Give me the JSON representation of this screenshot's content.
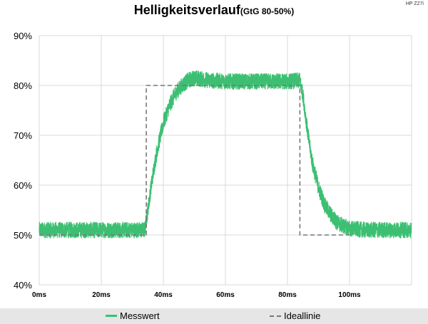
{
  "title": "Helligkeitsverlauf",
  "subtitle": "(GtG 80-50%)",
  "corner_label": "HP Z27i",
  "legend": {
    "series1": "Messwert",
    "series2": "Ideallinie"
  },
  "colors": {
    "measured": "#3cbf72",
    "ideal": "#777777",
    "grid": "#d9d9d9"
  },
  "chart_data": {
    "type": "line",
    "title": "Helligkeitsverlauf",
    "subtitle": "(GtG 80-50%)",
    "xlabel": "",
    "ylabel": "",
    "xlim": [
      0,
      120
    ],
    "ylim": [
      40,
      90
    ],
    "x_ticks": [
      0,
      20,
      40,
      60,
      80,
      100
    ],
    "x_tick_labels": [
      "0ms",
      "20ms",
      "40ms",
      "60ms",
      "80ms",
      "100ms"
    ],
    "y_ticks": [
      40,
      50,
      60,
      70,
      80,
      90
    ],
    "y_tick_labels": [
      "40%",
      "50%",
      "60%",
      "70%",
      "80%",
      "90%"
    ],
    "grid": true,
    "legend_position": "bottom",
    "series": [
      {
        "name": "Messwert",
        "style": "solid-noisy",
        "noise_band": 2,
        "x": [
          0,
          10,
          20,
          30,
          34,
          35,
          36,
          37,
          38,
          40,
          42,
          44,
          46,
          48,
          50,
          52,
          55,
          60,
          65,
          70,
          75,
          80,
          84,
          85,
          86,
          87,
          88,
          90,
          92,
          94,
          96,
          98,
          100,
          105,
          110,
          120
        ],
        "y": [
          51,
          51,
          51,
          51,
          51,
          55,
          59.5,
          63.5,
          67,
          72.5,
          76,
          78.5,
          80,
          81,
          81.5,
          81.3,
          81,
          80.8,
          80.8,
          80.8,
          80.8,
          80.8,
          81,
          78,
          73,
          68.5,
          64.5,
          59.5,
          56,
          54,
          52.5,
          51.8,
          51.3,
          51,
          51,
          51
        ]
      },
      {
        "name": "Ideallinie",
        "style": "dashed",
        "x": [
          0,
          34.5,
          34.5,
          84,
          84,
          100
        ],
        "y": [
          50,
          50,
          80,
          80,
          50,
          50
        ]
      }
    ]
  }
}
